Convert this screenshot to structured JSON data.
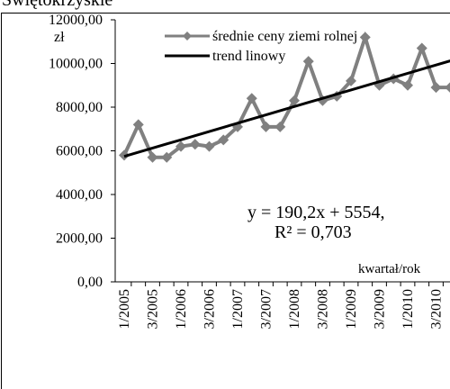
{
  "chart_data": {
    "type": "line",
    "title": "Świętokrzyskie",
    "y_unit_label": "zł",
    "xlabel": "kwartał/rok",
    "annotations": [
      "y = 190,2x + 5554,",
      "R² = 0,703"
    ],
    "categories": [
      "1/2005",
      null,
      "3/2005",
      null,
      "1/2006",
      null,
      "3/2006",
      null,
      "1/2007",
      null,
      "3/2007",
      null,
      "1/2008",
      null,
      "3/2008",
      null,
      "1/2009",
      null,
      "3/2009",
      null,
      "1/2010",
      null,
      "3/2010",
      null
    ],
    "series": [
      {
        "name": "średnie ceny ziemi rolnej",
        "color": "#808080",
        "marker": "diamond",
        "values": [
          5800,
          7200,
          5700,
          5700,
          6200,
          6300,
          6200,
          6500,
          7100,
          8400,
          7100,
          7100,
          8300,
          10100,
          8300,
          8500,
          9200,
          11200,
          9000,
          9300,
          9000,
          10700,
          8900,
          8900
        ]
      },
      {
        "name": "trend linowy",
        "color": "#000000",
        "values": [
          5744.2,
          5934.4,
          6124.6,
          6314.8,
          6505,
          6695.2,
          6885.4,
          7075.6,
          7265.8,
          7456,
          7646.2,
          7836.4,
          8026.6,
          8216.8,
          8407,
          8597.2,
          8787.4,
          8977.6,
          9167.8,
          9358,
          9548.2,
          9738.4,
          9928.6,
          10118.8
        ]
      }
    ],
    "ylim": [
      0,
      12000
    ],
    "yticks": [
      {
        "value": 0,
        "label": "0,00"
      },
      {
        "value": 2000,
        "label": "2000,00"
      },
      {
        "value": 4000,
        "label": "4000,00"
      },
      {
        "value": 6000,
        "label": "6000,00"
      },
      {
        "value": 8000,
        "label": "8000,00"
      },
      {
        "value": 10000,
        "label": "10000,00"
      },
      {
        "value": 12000,
        "label": "12000,00"
      }
    ],
    "grid": false
  }
}
